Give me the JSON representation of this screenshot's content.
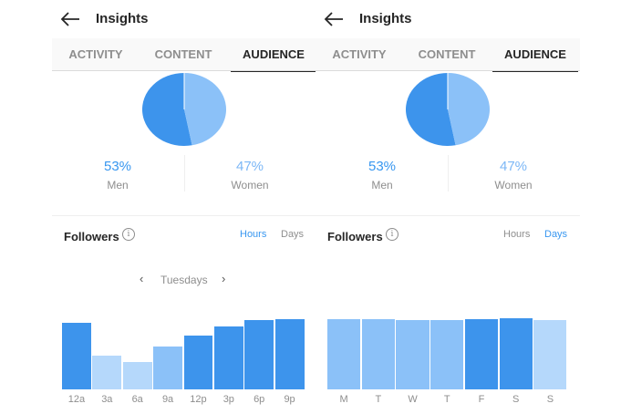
{
  "colors": {
    "primary_blue": "#3897f0",
    "dark_bar": "#3d94ec",
    "mid_bar": "#8bc1f8",
    "light_bar": "#b5d8fb"
  },
  "panels": [
    {
      "header": {
        "title": "Insights",
        "back_icon": "arrow-left-icon"
      },
      "tabs": [
        {
          "label": "ACTIVITY",
          "active": false
        },
        {
          "label": "CONTENT",
          "active": false
        },
        {
          "label": "AUDIENCE",
          "active": true
        }
      ],
      "gender": {
        "men": {
          "percent": "53%",
          "label": "Men"
        },
        "women": {
          "percent": "47%",
          "label": "Women"
        },
        "pie": {
          "men_share": 53,
          "women_share": 47
        }
      },
      "followers": {
        "title": "Followers",
        "toggle": {
          "hours": "Hours",
          "days": "Days",
          "selected": "Hours"
        },
        "day_selector": {
          "label": "Tuesdays"
        }
      },
      "chart_data": {
        "type": "bar",
        "categories": [
          "12a",
          "3a",
          "6a",
          "9a",
          "12p",
          "3p",
          "6p",
          "9p"
        ],
        "values": [
          66,
          34,
          27,
          43,
          54,
          63,
          69,
          70
        ],
        "ylim": [
          0,
          100
        ],
        "bar_shades": [
          "dark",
          "light",
          "light",
          "mid",
          "dark",
          "dark",
          "dark",
          "dark"
        ]
      }
    },
    {
      "header": {
        "title": "Insights",
        "back_icon": "arrow-left-icon"
      },
      "tabs": [
        {
          "label": "ACTIVITY",
          "active": false
        },
        {
          "label": "CONTENT",
          "active": false
        },
        {
          "label": "AUDIENCE",
          "active": true
        }
      ],
      "gender": {
        "men": {
          "percent": "53%",
          "label": "Men"
        },
        "women": {
          "percent": "47%",
          "label": "Women"
        },
        "pie": {
          "men_share": 53,
          "women_share": 47
        }
      },
      "followers": {
        "title": "Followers",
        "toggle": {
          "hours": "Hours",
          "days": "Days",
          "selected": "Days"
        }
      },
      "chart_data": {
        "type": "bar",
        "categories": [
          "M",
          "T",
          "W",
          "T",
          "F",
          "S",
          "S"
        ],
        "values": [
          70,
          70,
          69,
          69,
          70,
          71,
          69
        ],
        "ylim": [
          0,
          100
        ],
        "bar_shades": [
          "mid",
          "mid",
          "mid",
          "mid",
          "dark",
          "dark",
          "light"
        ]
      }
    }
  ]
}
